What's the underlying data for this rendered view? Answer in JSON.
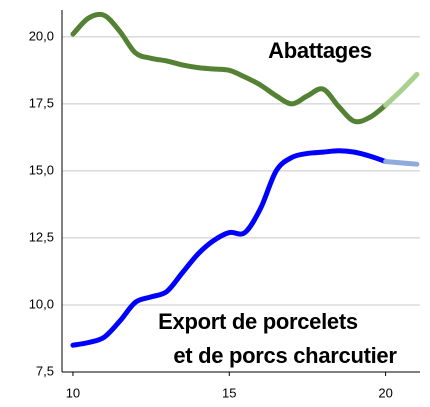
{
  "chart_data": {
    "type": "line",
    "x": [
      10,
      10.5,
      11,
      11.5,
      12,
      12.5,
      13,
      13.5,
      14,
      14.5,
      15,
      15.5,
      16,
      16.5,
      17,
      17.5,
      18,
      18.5,
      19,
      19.5,
      20,
      20.5,
      21
    ],
    "series": [
      {
        "color": "#548235",
        "projection_color": "#a9d18e",
        "values": [
          20.1,
          20.7,
          20.8,
          20.2,
          19.4,
          19.2,
          19.1,
          18.95,
          18.85,
          18.8,
          18.75,
          18.5,
          18.2,
          17.8,
          17.5,
          17.8,
          18.05,
          17.4,
          16.85,
          17.0,
          17.45,
          18.0,
          18.6
        ]
      },
      {
        "color": "#0000ff",
        "projection_color": "#8faadc",
        "values": [
          8.5,
          8.6,
          8.8,
          9.4,
          10.1,
          10.3,
          10.5,
          11.2,
          11.9,
          12.4,
          12.7,
          12.7,
          13.6,
          15.0,
          15.5,
          15.65,
          15.7,
          15.75,
          15.7,
          15.55,
          15.35,
          15.3,
          15.25
        ]
      }
    ],
    "projection_from_x": 20,
    "annotations": [
      {
        "text": "Abattages",
        "color": "#548235"
      },
      {
        "text": "Export de porcelets",
        "color": "#0000ff"
      },
      {
        "text": "et de porcs charcutier",
        "color": "#0000ff"
      }
    ],
    "xlim": [
      9.65,
      21.1
    ],
    "xticks": [
      10,
      15,
      20
    ],
    "ylim": [
      7.5,
      21
    ],
    "yticks": [
      {
        "value": 7.5,
        "label": "7,5"
      },
      {
        "value": 10,
        "label": "10,0"
      },
      {
        "value": 12.5,
        "label": "12,5"
      },
      {
        "value": 15,
        "label": "15,0"
      },
      {
        "value": 17.5,
        "label": "17,5"
      },
      {
        "value": 20,
        "label": "20,0"
      }
    ],
    "grid": true
  }
}
